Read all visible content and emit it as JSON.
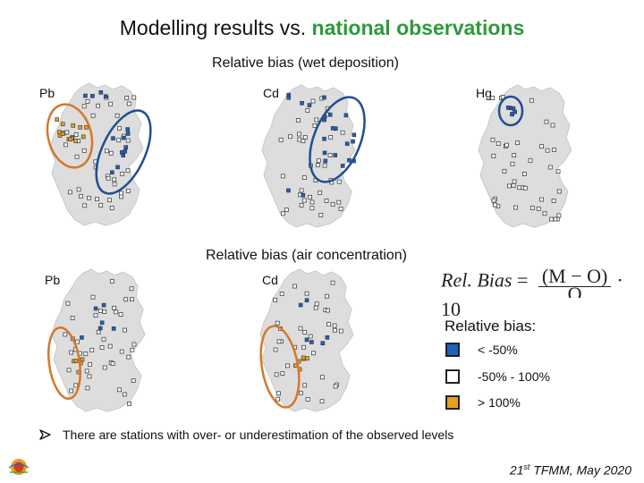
{
  "slide": {
    "title_plain": "Modelling results vs. ",
    "title_highlight": "national observations",
    "highlight_color": "#2e9a3a",
    "subtitle_wet": "Relative bias (wet deposition)",
    "subtitle_air": "Relative bias (air concentration)"
  },
  "maps": {
    "wet_pb": "Pb",
    "wet_cd": "Cd",
    "wet_hg": "Hg",
    "air_pb": "Pb",
    "air_cd": "Cd"
  },
  "formula": {
    "lhs": "Rel. Bias",
    "equals": "=",
    "numerator": "(M − O)",
    "denominator": "O",
    "tail": "· 10"
  },
  "legend": {
    "title": "Relative bias:",
    "items": [
      {
        "label": "< -50%",
        "color": "#1f5fbf"
      },
      {
        "label": "-50% - 100%",
        "color": "#ffffff"
      },
      {
        "label": "> 100%",
        "color": "#e8a020"
      }
    ]
  },
  "bullet": "There are stations with over- or underestimation of the observed levels",
  "footer": {
    "ordinal": "21",
    "suffix": "st",
    "rest": " TFMM, May 2020"
  },
  "colors": {
    "map_fill": "#dddddd",
    "blue_station": "#1f5fbf",
    "orange_station": "#e8a020",
    "orange_circle": "#d4782a",
    "blue_circle": "#1f4f8f"
  }
}
